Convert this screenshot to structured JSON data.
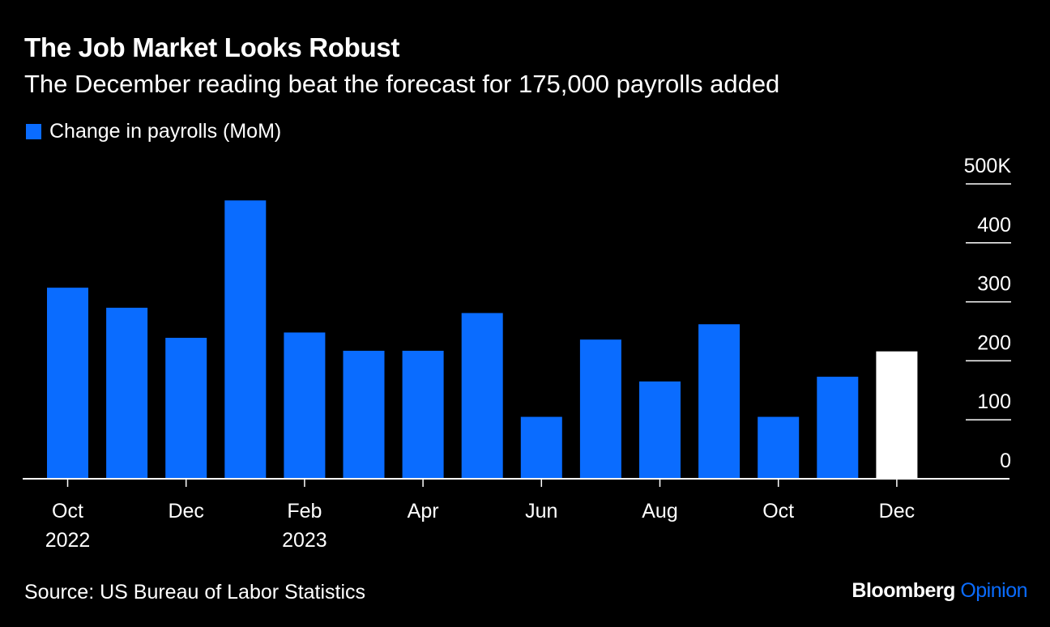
{
  "colors": {
    "background": "#000000",
    "bar": "#0a6cff",
    "bar_highlight": "#ffffff",
    "text": "#ffffff",
    "axis": "#ffffff",
    "brand_accent": "#0a6cff"
  },
  "footer": {
    "source": "Source: US Bureau of Labor Statistics",
    "brand_name": "Bloomberg",
    "brand_section": "Opinion"
  },
  "chart_data": {
    "type": "bar",
    "title": "The Job Market Looks Robust",
    "subtitle": "The December reading beat the forecast for 175,000 payrolls added",
    "categories": [
      "Oct 2022",
      "Nov 2022",
      "Dec 2022",
      "Jan 2023",
      "Feb 2023",
      "Mar 2023",
      "Apr 2023",
      "May 2023",
      "Jun 2023",
      "Jul 2023",
      "Aug 2023",
      "Sep 2023",
      "Oct 2023",
      "Nov 2023",
      "Dec 2023"
    ],
    "series": [
      {
        "name": "Change in payrolls (MoM)",
        "values": [
          324,
          290,
          239,
          472,
          248,
          217,
          217,
          281,
          105,
          236,
          165,
          262,
          105,
          173,
          216
        ]
      }
    ],
    "highlight_index": 14,
    "x_tick_labels": [
      {
        "index": 0,
        "lines": [
          "Oct",
          "2022"
        ]
      },
      {
        "index": 2,
        "lines": [
          "Dec"
        ]
      },
      {
        "index": 4,
        "lines": [
          "Feb",
          "2023"
        ]
      },
      {
        "index": 6,
        "lines": [
          "Apr"
        ]
      },
      {
        "index": 8,
        "lines": [
          "Jun"
        ]
      },
      {
        "index": 10,
        "lines": [
          "Aug"
        ]
      },
      {
        "index": 12,
        "lines": [
          "Oct"
        ]
      },
      {
        "index": 14,
        "lines": [
          "Dec"
        ]
      }
    ],
    "y_ticks": [
      {
        "value": 0,
        "label": "0"
      },
      {
        "value": 100,
        "label": "100"
      },
      {
        "value": 200,
        "label": "200"
      },
      {
        "value": 300,
        "label": "300"
      },
      {
        "value": 400,
        "label": "400"
      },
      {
        "value": 500,
        "label": "500K"
      }
    ],
    "ylim": [
      0,
      500
    ],
    "y_axis_position": "right",
    "grid": false,
    "legend_position": "top-left"
  }
}
